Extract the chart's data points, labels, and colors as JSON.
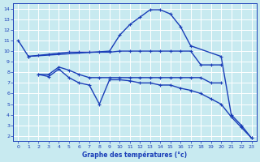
{
  "xlabel": "Graphe des températures (°c)",
  "bg_color": "#c8eaf0",
  "grid_color": "#ffffff",
  "line_color": "#1a3eb8",
  "xlim": [
    -0.5,
    23.5
  ],
  "ylim": [
    1.5,
    14.5
  ],
  "yticks": [
    2,
    3,
    4,
    5,
    6,
    7,
    8,
    9,
    10,
    11,
    12,
    13,
    14
  ],
  "xticks": [
    0,
    1,
    2,
    3,
    4,
    5,
    6,
    7,
    8,
    9,
    10,
    11,
    12,
    13,
    14,
    15,
    16,
    17,
    18,
    19,
    20,
    21,
    22,
    23
  ],
  "curve1_x": [
    0,
    1,
    9,
    10,
    11,
    12,
    13,
    14,
    15,
    16,
    17,
    20,
    21,
    22,
    23
  ],
  "curve1_y": [
    11.0,
    9.5,
    10.0,
    11.5,
    12.5,
    13.2,
    13.9,
    13.9,
    13.5,
    12.3,
    10.5,
    9.5,
    4.0,
    3.0,
    1.8
  ],
  "curve2_x": [
    1,
    2,
    3,
    4,
    5,
    6,
    7,
    8,
    9,
    10,
    11,
    12,
    13,
    14,
    15,
    16,
    17,
    18,
    19,
    20
  ],
  "curve2_y": [
    9.5,
    9.6,
    9.7,
    9.8,
    9.9,
    9.9,
    9.9,
    9.9,
    9.9,
    10.0,
    10.0,
    10.0,
    10.0,
    10.0,
    10.0,
    10.0,
    10.0,
    8.7,
    8.7,
    8.7
  ],
  "curve3_x": [
    2,
    3,
    4,
    5,
    6,
    7,
    8,
    9,
    10,
    11,
    12,
    13,
    14,
    15,
    16,
    17,
    18,
    19,
    20
  ],
  "curve3_y": [
    7.8,
    7.8,
    8.5,
    8.2,
    7.8,
    7.5,
    7.5,
    7.5,
    7.5,
    7.5,
    7.5,
    7.5,
    7.5,
    7.5,
    7.5,
    7.5,
    7.5,
    7.0,
    7.0
  ],
  "curve4_x": [
    2,
    3,
    4,
    5,
    6,
    7,
    8,
    9,
    10,
    11,
    12,
    13,
    14,
    15,
    16,
    17,
    18,
    19,
    20,
    21,
    22,
    23
  ],
  "curve4_y": [
    7.8,
    7.6,
    8.3,
    7.5,
    7.0,
    6.8,
    5.0,
    7.3,
    7.3,
    7.2,
    7.0,
    7.0,
    6.8,
    6.8,
    6.5,
    6.3,
    6.0,
    5.5,
    5.0,
    3.8,
    2.8,
    1.8
  ]
}
